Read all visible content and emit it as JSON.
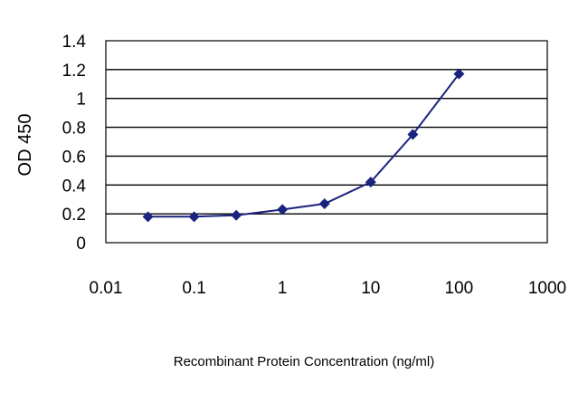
{
  "chart_data": {
    "type": "line",
    "title": "",
    "xlabel": "Recombinant Protein Concentration (ng/ml)",
    "ylabel": "OD 450",
    "x_scale": "log",
    "xlim": [
      0.01,
      1000
    ],
    "ylim": [
      0,
      1.4
    ],
    "x_ticks": [
      "0.01",
      "0.1",
      "1",
      "10",
      "100",
      "1000"
    ],
    "y_ticks": [
      "0",
      "0.2",
      "0.4",
      "0.6",
      "0.8",
      "1",
      "1.2",
      "1.4"
    ],
    "grid": "horizontal",
    "legend": "none",
    "series": [
      {
        "x": [
          0.03,
          0.1,
          0.3,
          1,
          3,
          10,
          30,
          100
        ],
        "y": [
          0.18,
          0.18,
          0.19,
          0.23,
          0.27,
          0.42,
          0.75,
          1.17
        ]
      }
    ],
    "colors": {
      "series": "#1a237e",
      "grid": "#000000",
      "frame": "#000000",
      "background": "#ffffff"
    }
  }
}
